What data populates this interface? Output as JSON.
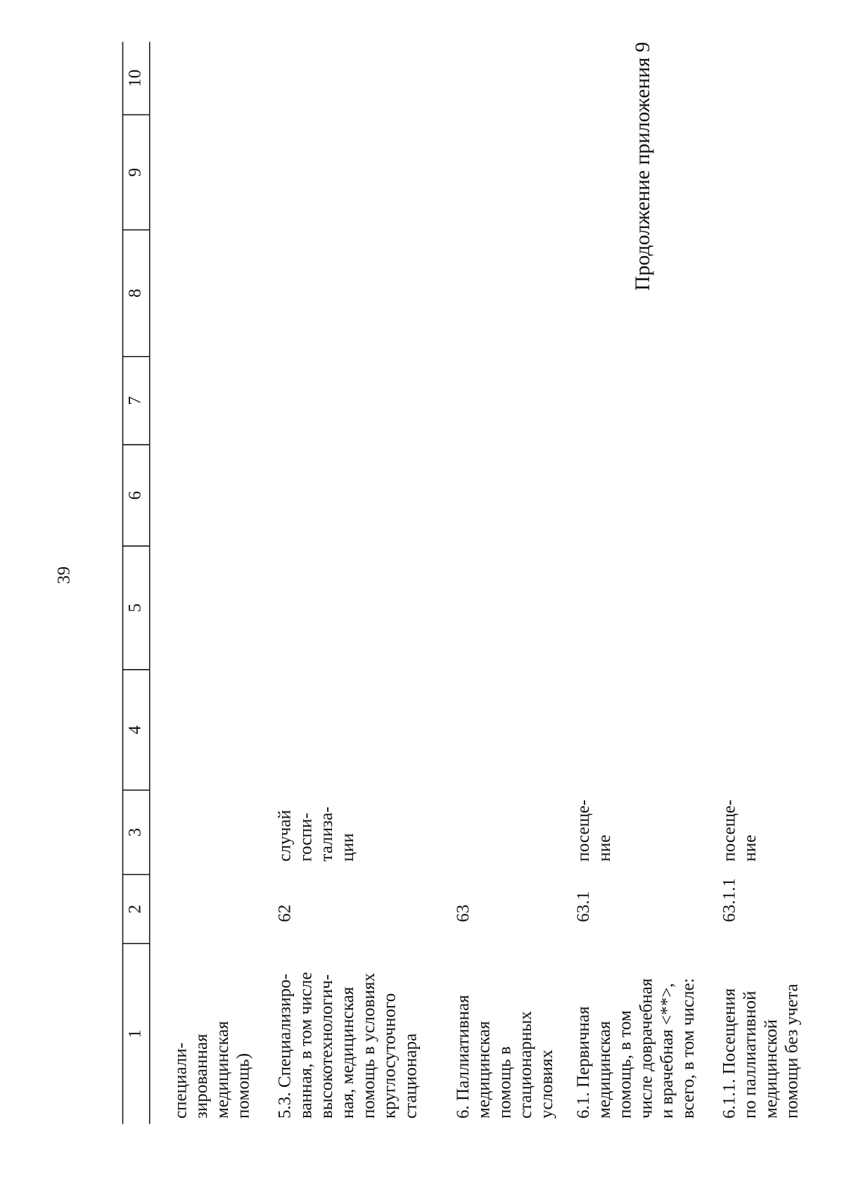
{
  "header": {
    "page_number": "39",
    "title": "Продолжение приложения 9"
  },
  "table": {
    "column_numbers": [
      "1",
      "2",
      "3",
      "4",
      "5",
      "6",
      "7",
      "8",
      "9",
      "10"
    ],
    "rows": [
      {
        "description": [
          "специали-",
          "зированная",
          "медицинская",
          "помощь)"
        ]
      },
      {
        "description": [
          "5.3. Специализиро-",
          "ванная, в том числе",
          "высокотехнологич-",
          "ная, медицинская",
          "помощь в условиях",
          "круглосуточного",
          "стационара"
        ],
        "code": "62",
        "unit": [
          "случай",
          "госпи-",
          "тализа-",
          "ции"
        ]
      },
      {
        "description": [
          "6. Паллиативная",
          "медицинская",
          "помощь в",
          "стационарных",
          "условиях"
        ],
        "code": "63"
      },
      {
        "description": [
          "6.1. Первичная",
          "медицинская",
          "помощь, в том",
          "числе доврачебная",
          "и врачебная <**>,",
          "всего, в том числе:"
        ],
        "code": "63.1",
        "unit": [
          "посеще-",
          "ние"
        ]
      },
      {
        "description": [
          "6.1.1. Посещения",
          "по паллиативной",
          "медицинской",
          "помощи без учета"
        ],
        "code": "63.1.1",
        "unit": [
          "посеще-",
          "ние"
        ]
      }
    ]
  }
}
